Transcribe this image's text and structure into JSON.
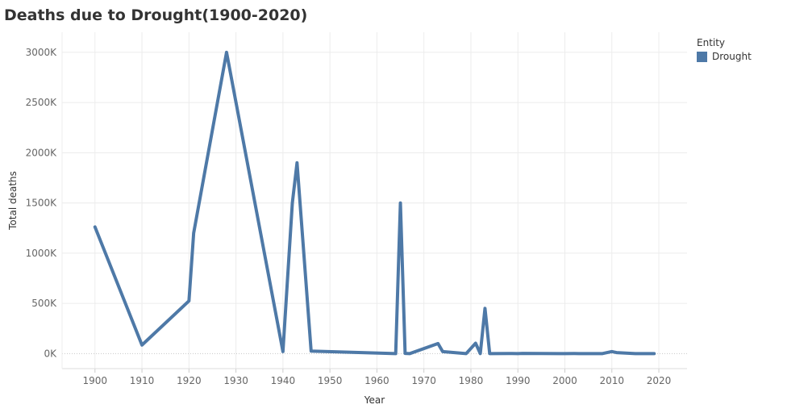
{
  "chart_data": {
    "type": "line",
    "title": "Deaths due to Drought(1900-2020)",
    "xlabel": "Year",
    "ylabel": "Total deaths",
    "xlim": [
      1893,
      2026
    ],
    "ylim": [
      -150000,
      3200000
    ],
    "x_ticks": [
      1900,
      1910,
      1920,
      1930,
      1940,
      1950,
      1960,
      1970,
      1980,
      1990,
      2000,
      2010,
      2020
    ],
    "y_ticks": [
      0,
      500000,
      1000000,
      1500000,
      2000000,
      2500000,
      3000000
    ],
    "y_tick_labels": [
      "0K",
      "500K",
      "1000K",
      "1500K",
      "2000K",
      "2500K",
      "3000K"
    ],
    "grid": true,
    "legend": {
      "title": "Entity",
      "placement": "top-right"
    },
    "series": [
      {
        "name": "Drought",
        "color": "#4e79a7",
        "points": [
          [
            1900,
            1261000
          ],
          [
            1910,
            85000
          ],
          [
            1920,
            524000
          ],
          [
            1921,
            1200000
          ],
          [
            1928,
            3000000
          ],
          [
            1940,
            20000
          ],
          [
            1942,
            1500000
          ],
          [
            1943,
            1900000
          ],
          [
            1946,
            25000
          ],
          [
            1964,
            0
          ],
          [
            1965,
            1500000
          ],
          [
            1966,
            2000
          ],
          [
            1967,
            0
          ],
          [
            1973,
            100000
          ],
          [
            1974,
            20000
          ],
          [
            1979,
            0
          ],
          [
            1981,
            103000
          ],
          [
            1982,
            0
          ],
          [
            1983,
            450000
          ],
          [
            1984,
            0
          ],
          [
            1988,
            1000
          ],
          [
            1990,
            0
          ],
          [
            1991,
            2000
          ],
          [
            1999,
            0
          ],
          [
            2000,
            0
          ],
          [
            2002,
            500
          ],
          [
            2003,
            0
          ],
          [
            2005,
            100
          ],
          [
            2006,
            0
          ],
          [
            2008,
            0
          ],
          [
            2010,
            20000
          ],
          [
            2011,
            10000
          ],
          [
            2015,
            0
          ],
          [
            2019,
            0
          ]
        ]
      }
    ]
  }
}
